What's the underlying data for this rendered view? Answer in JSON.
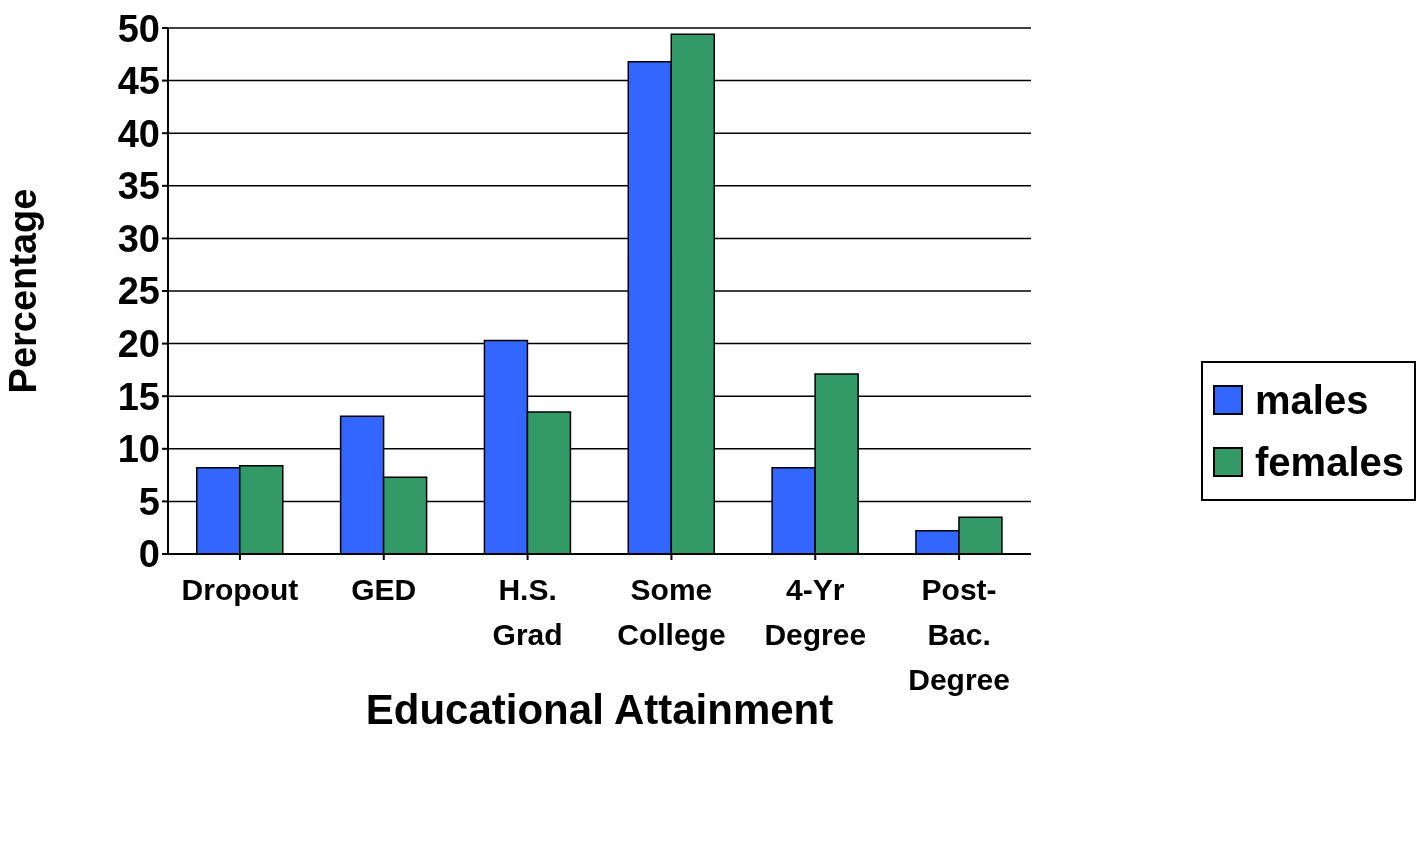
{
  "chart_data": {
    "type": "bar",
    "xlabel": "Educational Attainment",
    "ylabel": "Percentage",
    "categories": [
      "Dropout",
      "GED",
      "H.S.\nGrad",
      "Some\nCollege",
      "4-Yr\nDegree",
      "Post-\nBac.\nDegree"
    ],
    "series": [
      {
        "name": "males",
        "color": "#3366ff",
        "values": [
          8.2,
          13.1,
          20.3,
          46.8,
          8.2,
          2.2
        ]
      },
      {
        "name": "females",
        "color": "#339966",
        "values": [
          8.4,
          7.3,
          13.5,
          49.4,
          17.1,
          3.5
        ]
      }
    ],
    "ylim": [
      0,
      50
    ],
    "yticks": [
      0,
      5,
      10,
      15,
      20,
      25,
      30,
      35,
      40,
      45,
      50
    ],
    "grid": "y",
    "legend": "right"
  }
}
